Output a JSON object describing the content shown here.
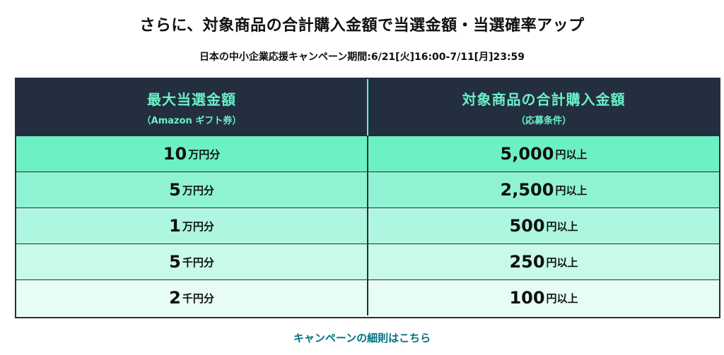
{
  "title": "さらに、対象商品の合計購入金額で当選金額・当選確率アップ",
  "subtitle": "日本の中小企業応援キャンペーン期間:6/21[火]16:00-7/11[月]23:59",
  "table": {
    "headers": [
      {
        "main": "最大当選金額",
        "sub": "（Amazon ギフト券）"
      },
      {
        "main": "対象商品の合計購入金額",
        "sub": "（応募条件）"
      }
    ],
    "rows": [
      {
        "prize_num": "10",
        "prize_unit": "万円分",
        "amount_num": "5,000",
        "amount_unit": "円以上"
      },
      {
        "prize_num": "5",
        "prize_unit": "万円分",
        "amount_num": "2,500",
        "amount_unit": "円以上"
      },
      {
        "prize_num": "1",
        "prize_unit": "万円分",
        "amount_num": "500",
        "amount_unit": "円以上"
      },
      {
        "prize_num": "5",
        "prize_unit": "千円分",
        "amount_num": "250",
        "amount_unit": "円以上"
      },
      {
        "prize_num": "2",
        "prize_unit": "千円分",
        "amount_num": "100",
        "amount_unit": "円以上"
      }
    ]
  },
  "details_link": "キャンペーンの細則はこちら",
  "colors": {
    "header_bg": "#232f3e",
    "header_text": "#6bf0c9",
    "link": "#007185"
  }
}
